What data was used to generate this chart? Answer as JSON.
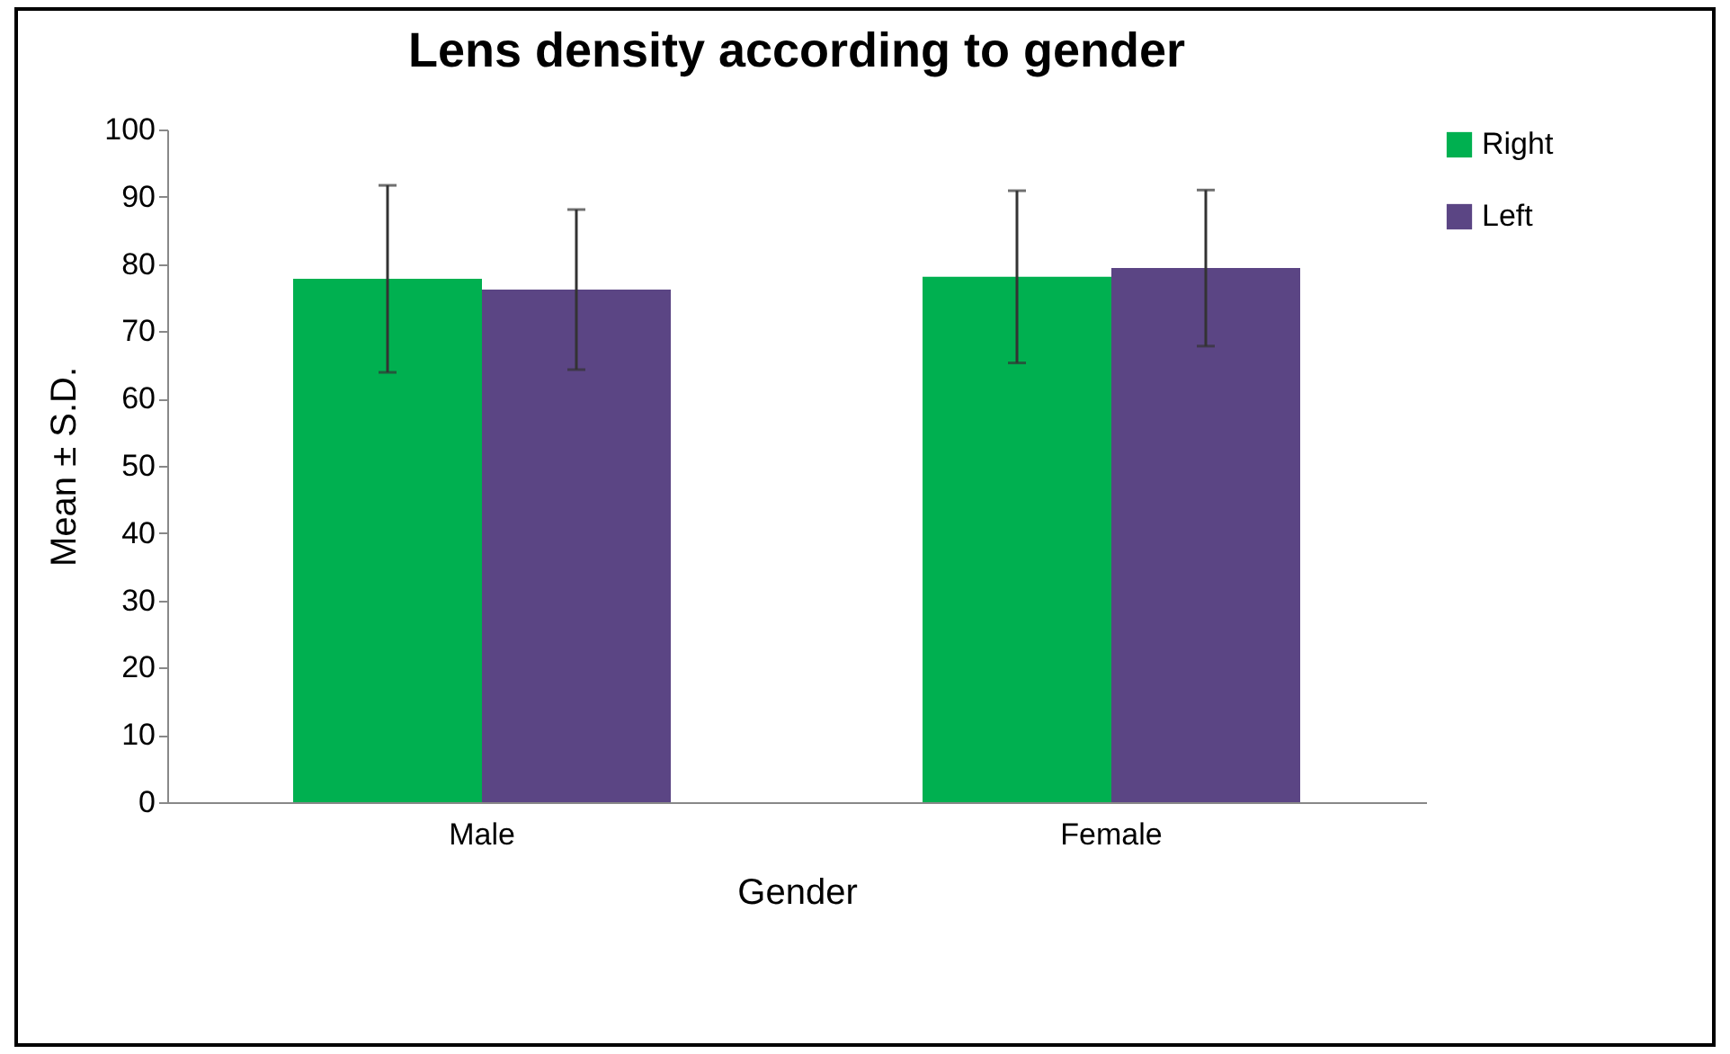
{
  "chart_data": {
    "type": "bar",
    "title": "Lens density according to gender",
    "xlabel": "Gender",
    "ylabel": "Mean ± S.D.",
    "categories": [
      "Male",
      "Female"
    ],
    "series": [
      {
        "name": "Right",
        "color": "#00b050",
        "values": [
          77.8,
          78.1
        ],
        "errors": [
          13.9,
          12.8
        ]
      },
      {
        "name": "Left",
        "color": "#5b4584",
        "values": [
          76.2,
          79.4
        ],
        "errors": [
          11.9,
          11.6
        ]
      }
    ],
    "ylim": [
      0,
      100
    ],
    "yticks": [
      0,
      10,
      20,
      30,
      40,
      50,
      60,
      70,
      80,
      90,
      100
    ],
    "grid": false,
    "legend": "right"
  }
}
